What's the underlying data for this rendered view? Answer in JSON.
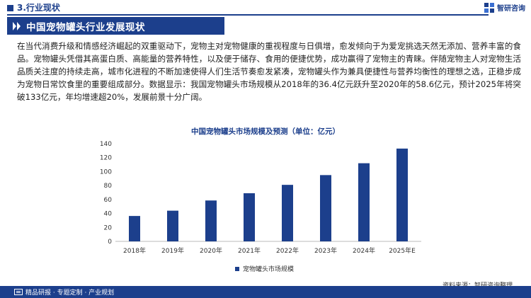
{
  "header": {
    "section": "3.行业现状"
  },
  "logo": {
    "text": "智研咨询",
    "brand_color": "#1c3f8c"
  },
  "banner": {
    "title": "中国宠物罐头行业发展现状"
  },
  "paragraph": "在当代消费升级和情感经济崛起的双重驱动下，宠物主对宠物健康的重视程度与日俱增，愈发倾向于为爱宠挑选天然无添加、营养丰富的食品。宠物罐头凭借其高蛋白质、高能量的营养特性，以及便于储存、食用的便捷优势，成功赢得了宠物主的青睐。伴随宠物主人对宠物生活品质关注度的持续走高，城市化进程的不断加速使得人们生活节奏愈发紧凑，宠物罐头作为兼具便捷性与营养均衡性的理想之选，正稳步成为宠物日常饮食里的重要组成部分。数据显示：我国宠物罐头市场规模从2018年的36.4亿元跃升至2020年的58.6亿元，预计2025年将突破133亿元，年均增速超20%，发展前景十分广阔。",
  "chart_data": {
    "type": "bar",
    "title": "中国宠物罐头市场规模及预测（单位：亿元）",
    "categories": [
      "2018年",
      "2019年",
      "2020年",
      "2021年",
      "2022年",
      "2023年",
      "2024年",
      "2025年E"
    ],
    "series": [
      {
        "name": "宠物罐头市场规模",
        "values": [
          36.4,
          44,
          58.6,
          69,
          81,
          95,
          112,
          133
        ],
        "color": "#1c3f8c"
      }
    ],
    "ylim": [
      0,
      140
    ],
    "yticks": [
      0,
      20,
      40,
      60,
      80,
      100,
      120,
      140
    ],
    "grid": false,
    "legend": "bottom-center"
  },
  "source": "资料来源：智研咨询整理",
  "footer": {
    "text": "精品研报 · 专题定制 · 产业规划"
  }
}
